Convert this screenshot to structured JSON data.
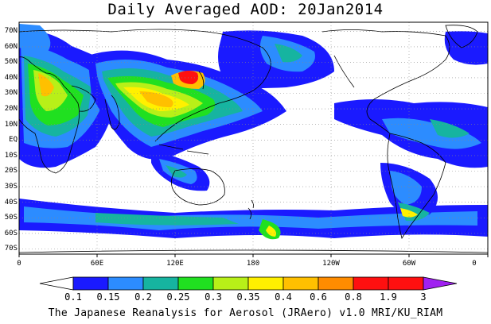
{
  "title": "Daily Averaged AOD: 20Jan2014",
  "footer": "The Japanese Reanalysis for Aerosol (JRAero) v1.0 MRI/KU_RIAM",
  "map": {
    "projection": "equirectangular",
    "lon_range": [
      0,
      360
    ],
    "lat_range": [
      -75,
      75
    ],
    "grid": "dotted",
    "lat_labels": [
      "70N",
      "60N",
      "50N",
      "40N",
      "30N",
      "20N",
      "10N",
      "EQ",
      "10S",
      "20S",
      "30S",
      "40S",
      "50S",
      "60S",
      "70S"
    ],
    "lon_labels": [
      "0",
      "60E",
      "120E",
      "180",
      "120W",
      "60W",
      "0"
    ]
  },
  "colorbar": {
    "levels": [
      "0.1",
      "0.15",
      "0.2",
      "0.25",
      "0.3",
      "0.35",
      "0.4",
      "0.6",
      "0.8",
      "1.9",
      "3"
    ],
    "colors": [
      "#ffffff",
      "#1a1aff",
      "#2c8cff",
      "#16b4a0",
      "#20e020",
      "#b8f018",
      "#fff000",
      "#ffc000",
      "#ff8c00",
      "#ff1010",
      "#a020f0"
    ]
  }
}
